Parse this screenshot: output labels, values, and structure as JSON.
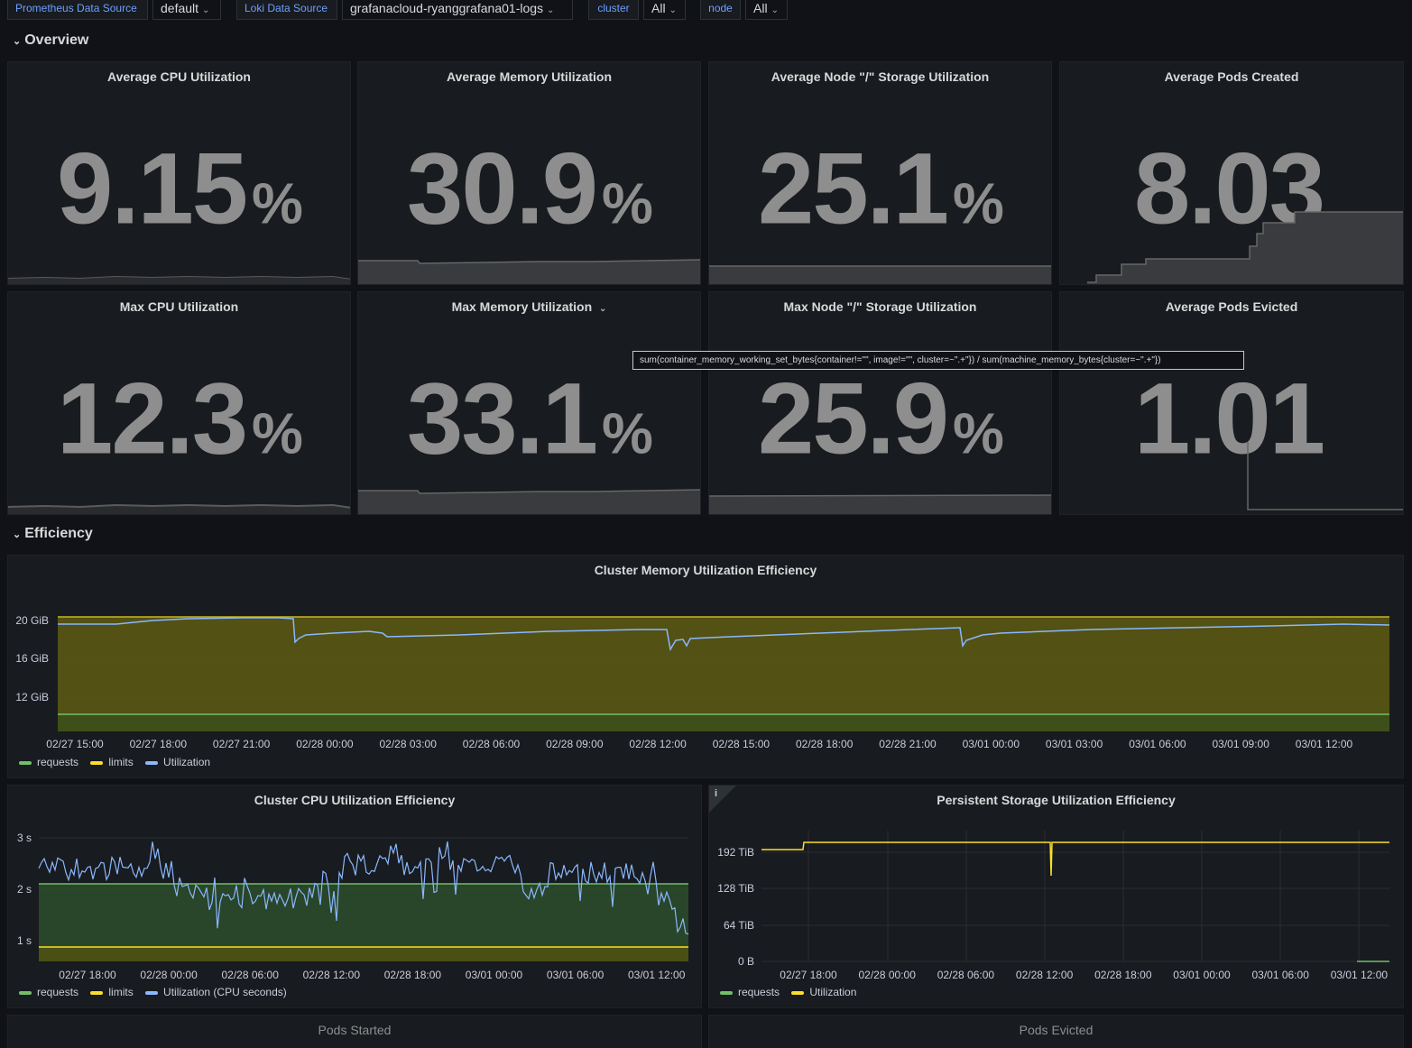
{
  "variables": {
    "prometheus_label": "Prometheus Data Source",
    "prometheus_value": "default",
    "loki_label": "Loki Data Source",
    "loki_value": "grafanacloud-ryanggrafana01-logs",
    "cluster_label": "cluster",
    "cluster_value": "All",
    "node_label": "node",
    "node_value": "All"
  },
  "rows": {
    "overview": "Overview",
    "efficiency": "Efficiency"
  },
  "stats": [
    {
      "title": "Average CPU Utilization",
      "value": "9.15",
      "unit": "%"
    },
    {
      "title": "Average Memory Utilization",
      "value": "30.9",
      "unit": "%"
    },
    {
      "title": "Average Node \"/\" Storage Utilization",
      "value": "25.1",
      "unit": "%"
    },
    {
      "title": "Average Pods Created",
      "value": "8.03",
      "unit": ""
    },
    {
      "title": "Max CPU Utilization",
      "value": "12.3",
      "unit": "%"
    },
    {
      "title": "Max Memory Utilization",
      "value": "33.1",
      "unit": "%"
    },
    {
      "title": "Max Node \"/\" Storage Utilization",
      "value": "25.9",
      "unit": "%"
    },
    {
      "title": "Average Pods Evicted",
      "value": "1.01",
      "unit": ""
    }
  ],
  "tooltip": "sum(container_memory_working_set_bytes{container!=\"\", image!=\"\", cluster=~\".+\"}) / sum(machine_memory_bytes{cluster=~\".+\"})",
  "colors": {
    "requests": "#73bf69",
    "limits": "#fade2a",
    "utilization": "#8ab8ff"
  },
  "charts": {
    "memory": {
      "title": "Cluster Memory Utilization Efficiency",
      "y_ticks": [
        "20 GiB",
        "16 GiB",
        "12 GiB"
      ],
      "x_ticks": [
        "02/27 15:00",
        "02/27 18:00",
        "02/27 21:00",
        "02/28 00:00",
        "02/28 03:00",
        "02/28 06:00",
        "02/28 09:00",
        "02/28 12:00",
        "02/28 15:00",
        "02/28 18:00",
        "02/28 21:00",
        "03/01 00:00",
        "03/01 03:00",
        "03/01 06:00",
        "03/01 09:00",
        "03/01 12:00"
      ],
      "legend": [
        "requests",
        "limits",
        "Utilization"
      ]
    },
    "cpu": {
      "title": "Cluster CPU Utilization Efficiency",
      "y_ticks": [
        "3 s",
        "2 s",
        "1 s"
      ],
      "x_ticks": [
        "02/27 18:00",
        "02/28 00:00",
        "02/28 06:00",
        "02/28 12:00",
        "02/28 18:00",
        "03/01 00:00",
        "03/01 06:00",
        "03/01 12:00"
      ],
      "legend": [
        "requests",
        "limits",
        "Utilization (CPU seconds)"
      ]
    },
    "storage": {
      "title": "Persistent Storage Utilization Efficiency",
      "info": "i",
      "y_ticks": [
        "192 TiB",
        "128 TiB",
        "64 TiB",
        "0 B"
      ],
      "x_ticks": [
        "02/27 18:00",
        "02/28 00:00",
        "02/28 06:00",
        "02/28 12:00",
        "02/28 18:00",
        "03/01 00:00",
        "03/01 06:00",
        "03/01 12:00"
      ],
      "legend": [
        "requests",
        "Utilization"
      ]
    }
  },
  "bottom_panels": [
    "Pods Started",
    "Pods Evicted"
  ]
}
